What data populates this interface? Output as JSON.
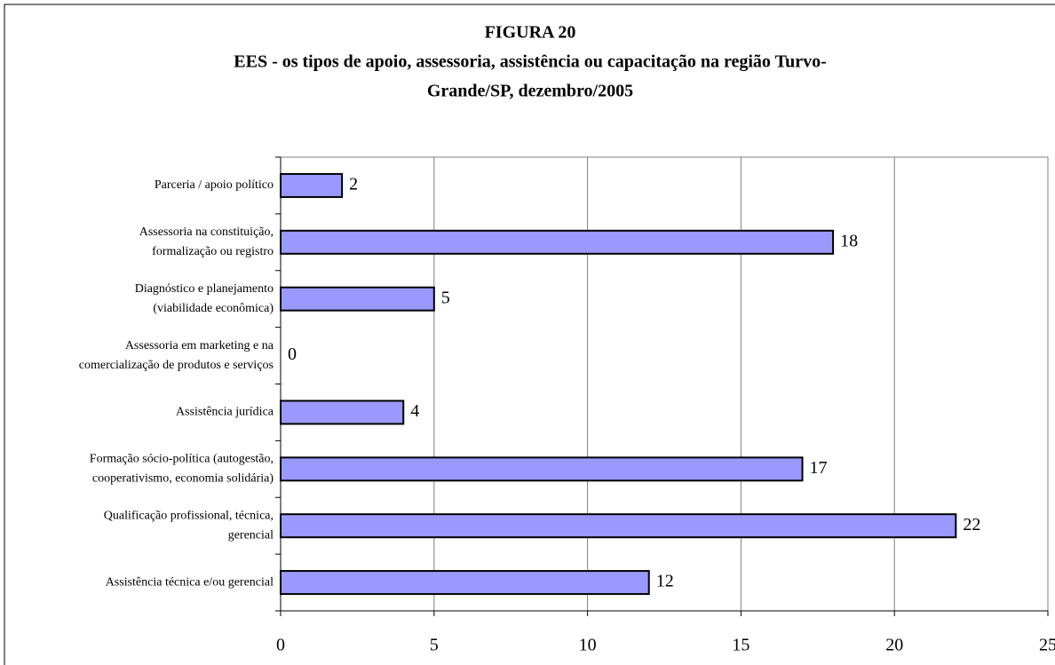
{
  "chart_data": {
    "type": "bar",
    "orientation": "horizontal",
    "title": [
      "FIGURA 20",
      "EES - os tipos de apoio, assessoria, assistência ou capacitação na região Turvo-",
      "Grande/SP, dezembro/2005"
    ],
    "categories": [
      [
        "Parceria / apoio político"
      ],
      [
        "Assessoria na constituição,",
        "formalização ou registro"
      ],
      [
        "Diagnóstico e planejamento",
        "(viabilidade econômica)"
      ],
      [
        "Assessoria em marketing e na",
        "comercialização de produtos e serviços"
      ],
      [
        "Assistência jurídica"
      ],
      [
        "Formação sócio-política (autogestão,",
        "cooperativismo, economia solidária)"
      ],
      [
        "Qualificação profissional, técnica,",
        "gerencial"
      ],
      [
        "Assistência técnica e/ou gerencial"
      ]
    ],
    "values": [
      2,
      18,
      5,
      0,
      4,
      17,
      22,
      12
    ],
    "color": "#9999ff",
    "xlim": [
      0,
      25
    ],
    "xticks": [
      0,
      5,
      10,
      15,
      20,
      25
    ],
    "grid": true
  }
}
